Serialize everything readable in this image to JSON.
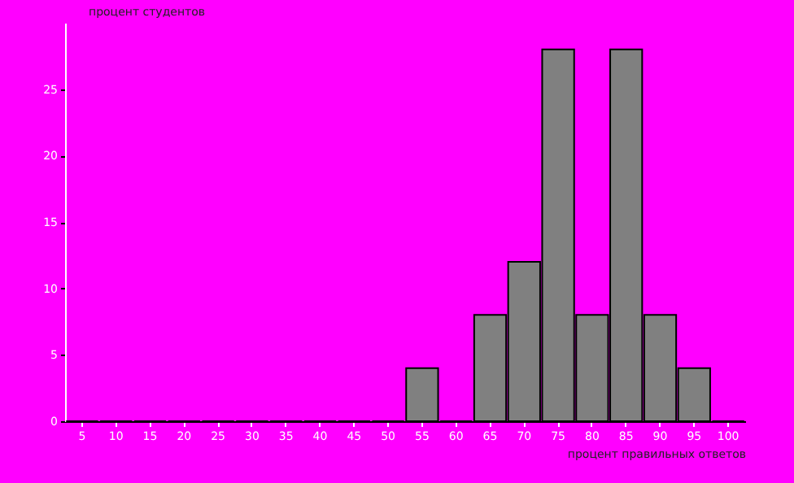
{
  "chart_data": {
    "type": "bar",
    "ylabel": "процент студентов",
    "xlabel": "процент правильных ответов",
    "categories": [
      "5",
      "10",
      "15",
      "20",
      "25",
      "30",
      "35",
      "40",
      "45",
      "50",
      "55",
      "60",
      "65",
      "70",
      "75",
      "80",
      "85",
      "90",
      "95",
      "100"
    ],
    "values": [
      0,
      0,
      0,
      0,
      0,
      0,
      0,
      0,
      0,
      0,
      4,
      0,
      8,
      12,
      28,
      8,
      28,
      8,
      4,
      0
    ],
    "color": "#808080",
    "ylim": [
      0,
      30
    ],
    "yticks": [
      0,
      5,
      10,
      15,
      20,
      25
    ],
    "grid": false
  }
}
